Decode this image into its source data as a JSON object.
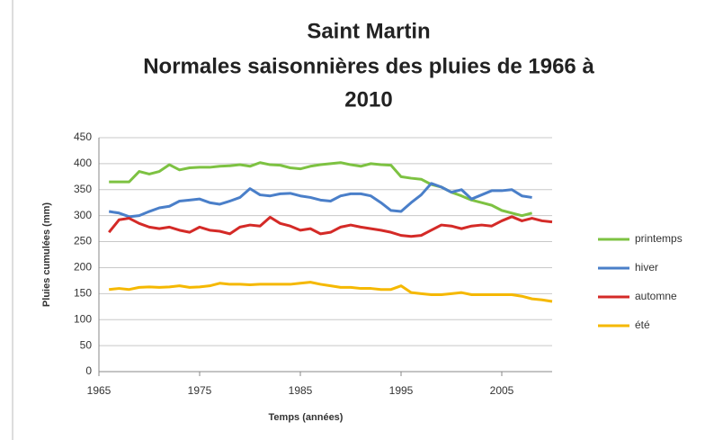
{
  "chart_data": {
    "type": "line",
    "title": [
      "Saint Martin",
      "Normales saisonnières des pluies de 1966 à",
      "2010"
    ],
    "xlabel": "Temps (années)",
    "ylabel": "Pluies cumulées (mm)",
    "x": [
      1966,
      1967,
      1968,
      1969,
      1970,
      1971,
      1972,
      1973,
      1974,
      1975,
      1976,
      1977,
      1978,
      1979,
      1980,
      1981,
      1982,
      1983,
      1984,
      1985,
      1986,
      1987,
      1988,
      1989,
      1990,
      1991,
      1992,
      1993,
      1994,
      1995,
      1996,
      1997,
      1998,
      1999,
      2000,
      2001,
      2002,
      2003,
      2004,
      2005,
      2006,
      2007,
      2008,
      2009,
      2010
    ],
    "series": [
      {
        "name": "printemps",
        "color": "#7dc242",
        "values": [
          365,
          365,
          365,
          385,
          380,
          385,
          398,
          388,
          392,
          393,
          393,
          395,
          396,
          398,
          395,
          402,
          398,
          397,
          392,
          390,
          395,
          398,
          400,
          402,
          398,
          395,
          400,
          398,
          397,
          375,
          372,
          370,
          360,
          355,
          345,
          338,
          330,
          325,
          320,
          310,
          305,
          300,
          305,
          null,
          null
        ]
      },
      {
        "name": "hiver",
        "color": "#4a7fc9",
        "values": [
          308,
          305,
          298,
          300,
          308,
          315,
          318,
          328,
          330,
          332,
          325,
          322,
          328,
          335,
          352,
          340,
          338,
          342,
          343,
          338,
          335,
          330,
          328,
          338,
          342,
          342,
          338,
          325,
          310,
          308,
          325,
          340,
          362,
          355,
          345,
          350,
          332,
          340,
          348,
          348,
          350,
          338,
          335,
          null,
          null
        ]
      },
      {
        "name": "automne",
        "color": "#d42a27",
        "values": [
          268,
          292,
          295,
          285,
          278,
          275,
          278,
          272,
          268,
          278,
          272,
          270,
          265,
          278,
          282,
          280,
          297,
          285,
          280,
          272,
          275,
          265,
          268,
          278,
          282,
          278,
          275,
          272,
          268,
          262,
          260,
          262,
          272,
          282,
          280,
          275,
          280,
          282,
          280,
          290,
          298,
          290,
          295,
          290,
          288
        ]
      },
      {
        "name": "été",
        "color": "#f5b800",
        "values": [
          158,
          160,
          158,
          162,
          163,
          162,
          163,
          165,
          162,
          163,
          165,
          170,
          168,
          168,
          167,
          168,
          168,
          168,
          168,
          170,
          172,
          168,
          165,
          162,
          162,
          160,
          160,
          158,
          158,
          165,
          152,
          150,
          148,
          148,
          150,
          152,
          148,
          148,
          148,
          148,
          148,
          145,
          140,
          138,
          135
        ]
      }
    ],
    "xlim": [
      1965,
      2010
    ],
    "xticks": [
      1965,
      1975,
      1985,
      1995,
      2005
    ],
    "ylim": [
      0,
      450
    ],
    "yticks": [
      0,
      50,
      100,
      150,
      200,
      250,
      300,
      350,
      400,
      450
    ],
    "grid": true,
    "legend": "right"
  }
}
